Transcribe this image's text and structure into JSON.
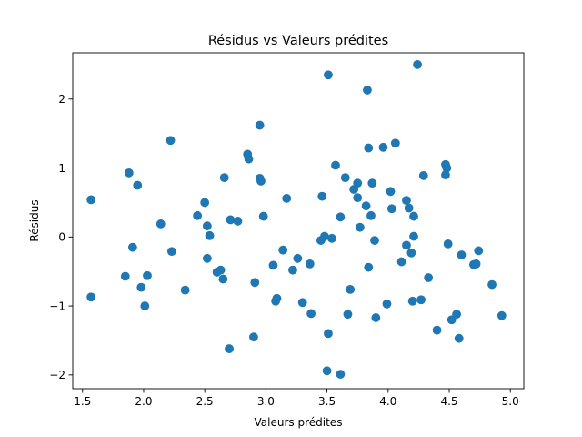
{
  "chart_data": {
    "type": "scatter",
    "title": "Résidus vs Valeurs prédites",
    "xlabel": "Valeurs prédites",
    "ylabel": "Résidus",
    "xlim": [
      1.42,
      5.11
    ],
    "ylim": [
      -2.2,
      2.67
    ],
    "xticks": [
      1.5,
      2.0,
      2.5,
      3.0,
      3.5,
      4.0,
      4.5,
      5.0
    ],
    "xtick_labels": [
      "1.5",
      "2.0",
      "2.5",
      "3.0",
      "3.5",
      "4.0",
      "4.5",
      "5.0"
    ],
    "yticks": [
      -2,
      -1,
      0,
      1,
      2
    ],
    "ytick_labels": [
      "−2",
      "−1",
      "0",
      "1",
      "2"
    ],
    "grid": false,
    "marker_color": "#1f77b4",
    "points": [
      [
        1.57,
        0.54
      ],
      [
        1.57,
        -0.87
      ],
      [
        1.85,
        -0.57
      ],
      [
        1.88,
        0.93
      ],
      [
        1.91,
        -0.15
      ],
      [
        1.95,
        0.75
      ],
      [
        1.98,
        -0.73
      ],
      [
        2.01,
        -1.0
      ],
      [
        2.03,
        -0.56
      ],
      [
        2.14,
        0.19
      ],
      [
        2.22,
        1.4
      ],
      [
        2.23,
        -0.21
      ],
      [
        2.34,
        -0.77
      ],
      [
        2.44,
        0.31
      ],
      [
        2.5,
        0.5
      ],
      [
        2.52,
        0.16
      ],
      [
        2.52,
        -0.31
      ],
      [
        2.54,
        0.02
      ],
      [
        2.6,
        -0.51
      ],
      [
        2.63,
        -0.48
      ],
      [
        2.65,
        -0.61
      ],
      [
        2.66,
        0.86
      ],
      [
        2.7,
        -1.62
      ],
      [
        2.71,
        0.25
      ],
      [
        2.77,
        0.23
      ],
      [
        2.85,
        1.2
      ],
      [
        2.86,
        1.13
      ],
      [
        2.9,
        -1.45
      ],
      [
        2.91,
        -0.66
      ],
      [
        2.95,
        1.62
      ],
      [
        2.95,
        0.85
      ],
      [
        2.96,
        0.81
      ],
      [
        2.98,
        0.3
      ],
      [
        3.06,
        -0.41
      ],
      [
        3.08,
        -0.93
      ],
      [
        3.09,
        -0.89
      ],
      [
        3.14,
        -0.19
      ],
      [
        3.17,
        0.56
      ],
      [
        3.22,
        -0.48
      ],
      [
        3.26,
        -0.31
      ],
      [
        3.3,
        -0.95
      ],
      [
        3.36,
        -0.39
      ],
      [
        3.37,
        -1.11
      ],
      [
        3.45,
        -0.05
      ],
      [
        3.46,
        0.59
      ],
      [
        3.48,
        0.01
      ],
      [
        3.5,
        -1.94
      ],
      [
        3.51,
        2.35
      ],
      [
        3.51,
        -1.4
      ],
      [
        3.54,
        -0.02
      ],
      [
        3.57,
        1.04
      ],
      [
        3.61,
        0.29
      ],
      [
        3.61,
        -1.99
      ],
      [
        3.65,
        0.86
      ],
      [
        3.67,
        -1.12
      ],
      [
        3.69,
        -0.76
      ],
      [
        3.72,
        0.69
      ],
      [
        3.75,
        0.78
      ],
      [
        3.75,
        0.57
      ],
      [
        3.77,
        0.14
      ],
      [
        3.82,
        0.45
      ],
      [
        3.83,
        2.13
      ],
      [
        3.84,
        1.29
      ],
      [
        3.84,
        -0.44
      ],
      [
        3.86,
        0.31
      ],
      [
        3.87,
        0.78
      ],
      [
        3.89,
        -0.05
      ],
      [
        3.9,
        -1.17
      ],
      [
        3.96,
        1.3
      ],
      [
        3.99,
        -0.97
      ],
      [
        4.02,
        0.66
      ],
      [
        4.03,
        0.41
      ],
      [
        4.06,
        1.36
      ],
      [
        4.11,
        -0.36
      ],
      [
        4.15,
        0.53
      ],
      [
        4.15,
        -0.12
      ],
      [
        4.17,
        0.42
      ],
      [
        4.19,
        -0.23
      ],
      [
        4.2,
        -0.93
      ],
      [
        4.21,
        0.3
      ],
      [
        4.21,
        0.01
      ],
      [
        4.24,
        2.5
      ],
      [
        4.27,
        -0.91
      ],
      [
        4.29,
        0.89
      ],
      [
        4.33,
        -0.59
      ],
      [
        4.4,
        -1.35
      ],
      [
        4.47,
        1.05
      ],
      [
        4.47,
        0.9
      ],
      [
        4.48,
        1.0
      ],
      [
        4.49,
        -0.1
      ],
      [
        4.52,
        -1.2
      ],
      [
        4.56,
        -1.12
      ],
      [
        4.58,
        -1.47
      ],
      [
        4.6,
        -0.26
      ],
      [
        4.7,
        -0.4
      ],
      [
        4.72,
        -0.39
      ],
      [
        4.74,
        -0.2
      ],
      [
        4.85,
        -0.69
      ],
      [
        4.93,
        -1.14
      ]
    ]
  }
}
